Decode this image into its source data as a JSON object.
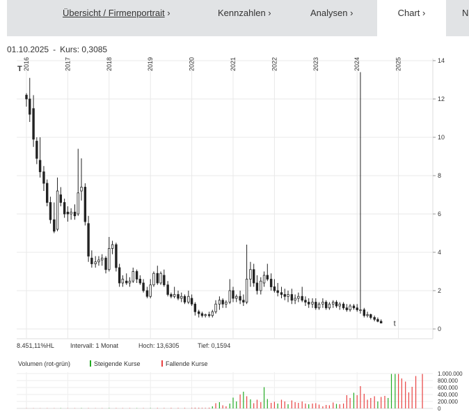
{
  "nav": {
    "tabs": [
      {
        "label": "Übersicht / Firmenportrait",
        "arrow": "›"
      },
      {
        "label": "Kennzahlen",
        "arrow": "›"
      },
      {
        "label": "Analysen",
        "arrow": "›"
      },
      {
        "label": "Chart",
        "arrow": "›"
      },
      {
        "label": "N",
        "arrow": ""
      }
    ]
  },
  "header": {
    "date": "01.10.2025",
    "separator": "-",
    "kurs": "Kurs: 0,3085"
  },
  "stats": {
    "change": "8.451,11%HL",
    "interval": "Intervall: 1 Monat",
    "high": "Hoch: 13,6305",
    "low": "Tief: 0,1594"
  },
  "volume_legend": {
    "title": "Volumen (rot-grün)",
    "rising": "Steigende Kurse",
    "falling": "Fallende Kurse"
  },
  "markers": {
    "high_marker": "T",
    "low_marker": "t"
  },
  "colors": {
    "rising": "#22aa22",
    "falling": "#e84040",
    "candle": "#222222",
    "grid": "#e8e8e8",
    "nav_bg": "#e1e3e5"
  },
  "chart_data": {
    "type": "candlestick",
    "x_ticks": [
      "2016",
      "2017",
      "2018",
      "2019",
      "2020",
      "2021",
      "2022",
      "2023",
      "2024",
      "2025"
    ],
    "y_ticks": [
      "14",
      "12",
      "10",
      "8",
      "6",
      "4",
      "2",
      "0"
    ],
    "ylim": [
      0,
      14
    ],
    "ohlc": [
      [
        2016.0,
        12.2,
        12.3,
        11.6,
        12.0
      ],
      [
        2016.08,
        12.0,
        13.1,
        10.8,
        11.2
      ],
      [
        2016.17,
        11.5,
        12.2,
        9.5,
        9.9
      ],
      [
        2016.25,
        9.8,
        10.0,
        8.6,
        8.9
      ],
      [
        2016.33,
        8.8,
        10.0,
        7.9,
        8.2
      ],
      [
        2016.42,
        8.2,
        8.5,
        7.2,
        7.6
      ],
      [
        2016.5,
        7.6,
        7.8,
        6.4,
        6.6
      ],
      [
        2016.58,
        6.6,
        6.9,
        5.5,
        5.7
      ],
      [
        2016.67,
        5.7,
        6.6,
        5.0,
        5.1
      ],
      [
        2016.75,
        5.2,
        7.9,
        5.1,
        7.2
      ],
      [
        2016.83,
        7.0,
        7.4,
        6.4,
        6.6
      ],
      [
        2016.92,
        6.6,
        6.8,
        5.8,
        6.0
      ],
      [
        2017.0,
        6.1,
        6.4,
        5.6,
        6.0
      ],
      [
        2017.08,
        6.0,
        6.3,
        5.7,
        6.1
      ],
      [
        2017.17,
        6.1,
        6.5,
        5.7,
        5.9
      ],
      [
        2017.25,
        6.0,
        9.4,
        5.9,
        7.1
      ],
      [
        2017.33,
        7.2,
        8.9,
        6.7,
        7.4
      ],
      [
        2017.42,
        7.4,
        7.6,
        5.4,
        5.6
      ],
      [
        2017.5,
        5.5,
        5.9,
        3.5,
        3.8
      ],
      [
        2017.58,
        3.7,
        4.1,
        3.2,
        3.4
      ],
      [
        2017.67,
        3.4,
        3.8,
        3.2,
        3.5
      ],
      [
        2017.75,
        3.5,
        3.8,
        3.3,
        3.6
      ],
      [
        2017.83,
        3.6,
        3.9,
        3.3,
        3.7
      ],
      [
        2017.92,
        3.7,
        3.8,
        2.9,
        3.1
      ],
      [
        2018.0,
        3.1,
        4.8,
        3.0,
        4.2
      ],
      [
        2018.08,
        4.2,
        4.6,
        3.9,
        4.4
      ],
      [
        2018.17,
        4.4,
        4.5,
        3.0,
        3.2
      ],
      [
        2018.25,
        3.2,
        3.4,
        2.2,
        2.4
      ],
      [
        2018.33,
        2.4,
        2.8,
        2.2,
        2.6
      ],
      [
        2018.42,
        2.5,
        2.9,
        2.3,
        2.4
      ],
      [
        2018.5,
        2.4,
        2.7,
        2.2,
        2.5
      ],
      [
        2018.58,
        2.5,
        3.2,
        2.4,
        3.0
      ],
      [
        2018.67,
        3.0,
        3.1,
        2.4,
        2.6
      ],
      [
        2018.75,
        2.6,
        2.8,
        2.3,
        2.4
      ],
      [
        2018.83,
        2.4,
        2.6,
        1.9,
        2.0
      ],
      [
        2018.92,
        2.0,
        2.2,
        1.6,
        1.7
      ],
      [
        2019.0,
        1.7,
        2.6,
        1.6,
        2.3
      ],
      [
        2019.08,
        2.3,
        3.0,
        2.2,
        2.9
      ],
      [
        2019.17,
        2.9,
        3.3,
        2.3,
        2.4
      ],
      [
        2019.25,
        2.4,
        3.0,
        2.3,
        2.9
      ],
      [
        2019.33,
        2.8,
        3.1,
        2.2,
        2.3
      ],
      [
        2019.42,
        2.3,
        2.5,
        1.7,
        1.8
      ],
      [
        2019.5,
        1.8,
        1.9,
        1.6,
        1.7
      ],
      [
        2019.58,
        1.7,
        2.2,
        1.6,
        1.8
      ],
      [
        2019.67,
        1.8,
        2.0,
        1.5,
        1.6
      ],
      [
        2019.75,
        1.6,
        1.9,
        1.4,
        1.7
      ],
      [
        2019.83,
        1.7,
        1.8,
        1.3,
        1.4
      ],
      [
        2019.92,
        1.4,
        2.0,
        1.3,
        1.7
      ],
      [
        2020.0,
        1.6,
        1.8,
        1.2,
        1.3
      ],
      [
        2020.08,
        1.3,
        1.4,
        0.7,
        0.9
      ],
      [
        2020.17,
        0.9,
        1.0,
        0.6,
        0.8
      ],
      [
        2020.25,
        0.8,
        0.9,
        0.6,
        0.7
      ],
      [
        2020.33,
        0.7,
        0.8,
        0.6,
        0.75
      ],
      [
        2020.42,
        0.75,
        0.9,
        0.6,
        0.7
      ],
      [
        2020.5,
        0.7,
        1.0,
        0.6,
        0.9
      ],
      [
        2020.58,
        0.9,
        1.5,
        0.8,
        1.3
      ],
      [
        2020.67,
        1.3,
        1.7,
        1.0,
        1.5
      ],
      [
        2020.75,
        1.5,
        1.6,
        1.1,
        1.3
      ],
      [
        2020.83,
        1.3,
        1.5,
        1.1,
        1.4
      ],
      [
        2020.92,
        1.4,
        2.6,
        1.3,
        2.0
      ],
      [
        2021.0,
        2.0,
        2.2,
        1.4,
        1.6
      ],
      [
        2021.08,
        1.6,
        1.8,
        1.4,
        1.7
      ],
      [
        2021.17,
        1.7,
        2.0,
        1.3,
        1.5
      ],
      [
        2021.25,
        1.5,
        1.8,
        1.2,
        1.4
      ],
      [
        2021.33,
        1.4,
        4.4,
        1.3,
        2.6
      ],
      [
        2021.42,
        2.6,
        3.5,
        2.2,
        3.1
      ],
      [
        2021.5,
        3.1,
        3.4,
        2.2,
        2.4
      ],
      [
        2021.58,
        2.4,
        2.8,
        1.8,
        2.0
      ],
      [
        2021.67,
        2.0,
        2.7,
        1.8,
        2.5
      ],
      [
        2021.75,
        2.4,
        3.0,
        2.2,
        2.8
      ],
      [
        2021.83,
        2.8,
        3.4,
        2.5,
        2.6
      ],
      [
        2021.92,
        2.6,
        2.9,
        2.0,
        2.2
      ],
      [
        2022.0,
        2.2,
        2.6,
        1.9,
        2.0
      ],
      [
        2022.08,
        2.0,
        2.4,
        1.7,
        1.9
      ],
      [
        2022.17,
        1.9,
        2.2,
        1.6,
        1.8
      ],
      [
        2022.25,
        1.8,
        2.1,
        1.5,
        1.7
      ],
      [
        2022.33,
        1.7,
        2.0,
        1.4,
        1.8
      ],
      [
        2022.42,
        1.8,
        2.1,
        1.3,
        1.5
      ],
      [
        2022.5,
        1.5,
        1.8,
        1.3,
        1.6
      ],
      [
        2022.58,
        1.6,
        1.9,
        1.4,
        1.7
      ],
      [
        2022.67,
        1.7,
        2.2,
        1.4,
        1.5
      ],
      [
        2022.75,
        1.5,
        1.7,
        1.2,
        1.4
      ],
      [
        2022.83,
        1.4,
        1.6,
        1.1,
        1.3
      ],
      [
        2022.92,
        1.3,
        1.6,
        1.1,
        1.4
      ],
      [
        2023.0,
        1.4,
        1.6,
        1.0,
        1.1
      ],
      [
        2023.08,
        1.1,
        1.4,
        1.0,
        1.3
      ],
      [
        2023.17,
        1.3,
        1.6,
        1.1,
        1.4
      ],
      [
        2023.25,
        1.4,
        1.5,
        1.0,
        1.1
      ],
      [
        2023.33,
        1.1,
        1.4,
        1.0,
        1.3
      ],
      [
        2023.42,
        1.3,
        1.5,
        1.1,
        1.4
      ],
      [
        2023.5,
        1.4,
        1.5,
        1.1,
        1.2
      ],
      [
        2023.58,
        1.2,
        1.4,
        1.0,
        1.3
      ],
      [
        2023.67,
        1.3,
        1.4,
        1.0,
        1.1
      ],
      [
        2023.75,
        1.1,
        1.3,
        0.9,
        1.0
      ],
      [
        2023.83,
        1.0,
        1.3,
        0.9,
        1.2
      ],
      [
        2023.92,
        1.2,
        1.3,
        1.0,
        1.1
      ],
      [
        2024.0,
        1.1,
        1.3,
        0.9,
        1.0
      ],
      [
        2024.08,
        1.0,
        13.4,
        0.8,
        1.0
      ],
      [
        2024.17,
        1.0,
        1.1,
        0.6,
        0.7
      ],
      [
        2024.25,
        0.7,
        0.9,
        0.6,
        0.75
      ],
      [
        2024.33,
        0.75,
        0.8,
        0.5,
        0.6
      ],
      [
        2024.42,
        0.6,
        0.7,
        0.4,
        0.5
      ],
      [
        2024.5,
        0.5,
        0.6,
        0.35,
        0.4
      ],
      [
        2024.58,
        0.4,
        0.5,
        0.3,
        0.31
      ]
    ],
    "volume": {
      "y_ticks": [
        "1.000.000",
        "800.000",
        "600.000",
        "400.000",
        "200.000",
        "0"
      ],
      "ylim": [
        0,
        1000000
      ],
      "bars": [
        [
          2016.0,
          5000,
          "r"
        ],
        [
          2016.17,
          6000,
          "r"
        ],
        [
          2016.33,
          5000,
          "r"
        ],
        [
          2016.5,
          7000,
          "r"
        ],
        [
          2016.67,
          6000,
          "r"
        ],
        [
          2016.83,
          8000,
          "g"
        ],
        [
          2017.0,
          6000,
          "r"
        ],
        [
          2017.17,
          7000,
          "r"
        ],
        [
          2017.33,
          9000,
          "g"
        ],
        [
          2017.5,
          8000,
          "r"
        ],
        [
          2017.67,
          6000,
          "r"
        ],
        [
          2017.83,
          7000,
          "r"
        ],
        [
          2018.0,
          10000,
          "g"
        ],
        [
          2018.17,
          9000,
          "r"
        ],
        [
          2018.33,
          8000,
          "r"
        ],
        [
          2018.5,
          9000,
          "r"
        ],
        [
          2018.67,
          8000,
          "g"
        ],
        [
          2018.83,
          9000,
          "r"
        ],
        [
          2019.0,
          10000,
          "g"
        ],
        [
          2019.17,
          12000,
          "r"
        ],
        [
          2019.33,
          11000,
          "r"
        ],
        [
          2019.5,
          13000,
          "r"
        ],
        [
          2019.67,
          12000,
          "r"
        ],
        [
          2019.83,
          14000,
          "r"
        ],
        [
          2020.0,
          15000,
          "r"
        ],
        [
          2020.08,
          20000,
          "r"
        ],
        [
          2020.17,
          18000,
          "r"
        ],
        [
          2020.25,
          16000,
          "r"
        ],
        [
          2020.33,
          15000,
          "r"
        ],
        [
          2020.42,
          20000,
          "r"
        ],
        [
          2020.5,
          60000,
          "g"
        ],
        [
          2020.58,
          150000,
          "r"
        ],
        [
          2020.67,
          180000,
          "g"
        ],
        [
          2020.75,
          90000,
          "r"
        ],
        [
          2020.83,
          60000,
          "r"
        ],
        [
          2020.92,
          140000,
          "g"
        ],
        [
          2021.0,
          310000,
          "g"
        ],
        [
          2021.08,
          200000,
          "g"
        ],
        [
          2021.17,
          400000,
          "r"
        ],
        [
          2021.25,
          480000,
          "g"
        ],
        [
          2021.33,
          350000,
          "r"
        ],
        [
          2021.42,
          260000,
          "g"
        ],
        [
          2021.5,
          150000,
          "r"
        ],
        [
          2021.58,
          250000,
          "r"
        ],
        [
          2021.67,
          180000,
          "r"
        ],
        [
          2021.75,
          610000,
          "g"
        ],
        [
          2021.83,
          270000,
          "g"
        ],
        [
          2021.92,
          160000,
          "r"
        ],
        [
          2022.0,
          190000,
          "r"
        ],
        [
          2022.08,
          140000,
          "g"
        ],
        [
          2022.17,
          250000,
          "r"
        ],
        [
          2022.25,
          200000,
          "r"
        ],
        [
          2022.33,
          120000,
          "g"
        ],
        [
          2022.42,
          230000,
          "r"
        ],
        [
          2022.5,
          180000,
          "r"
        ],
        [
          2022.58,
          160000,
          "r"
        ],
        [
          2022.67,
          200000,
          "r"
        ],
        [
          2022.75,
          140000,
          "r"
        ],
        [
          2022.83,
          120000,
          "g"
        ],
        [
          2022.92,
          140000,
          "r"
        ],
        [
          2023.0,
          150000,
          "r"
        ],
        [
          2023.08,
          110000,
          "r"
        ],
        [
          2023.17,
          60000,
          "r"
        ],
        [
          2023.25,
          100000,
          "r"
        ],
        [
          2023.33,
          90000,
          "r"
        ],
        [
          2023.42,
          170000,
          "r"
        ],
        [
          2023.5,
          130000,
          "g"
        ],
        [
          2023.58,
          120000,
          "r"
        ],
        [
          2023.67,
          140000,
          "r"
        ],
        [
          2023.75,
          380000,
          "r"
        ],
        [
          2023.83,
          300000,
          "r"
        ],
        [
          2023.92,
          450000,
          "g"
        ],
        [
          2024.0,
          380000,
          "r"
        ],
        [
          2024.08,
          640000,
          "r"
        ],
        [
          2024.17,
          420000,
          "r"
        ],
        [
          2024.25,
          250000,
          "r"
        ],
        [
          2024.33,
          300000,
          "r"
        ],
        [
          2024.42,
          350000,
          "r"
        ],
        [
          2024.5,
          200000,
          "g"
        ],
        [
          2024.58,
          330000,
          "r"
        ],
        [
          2024.67,
          360000,
          "r"
        ],
        [
          2024.75,
          300000,
          "g"
        ],
        [
          2024.83,
          990000,
          "g"
        ],
        [
          2024.92,
          990000,
          "g"
        ],
        [
          2025.0,
          990000,
          "r"
        ],
        [
          2025.08,
          860000,
          "r"
        ],
        [
          2025.17,
          770000,
          "r"
        ],
        [
          2025.25,
          460000,
          "r"
        ],
        [
          2025.33,
          620000,
          "r"
        ],
        [
          2025.42,
          930000,
          "r"
        ],
        [
          2025.58,
          990000,
          "r"
        ]
      ]
    }
  }
}
